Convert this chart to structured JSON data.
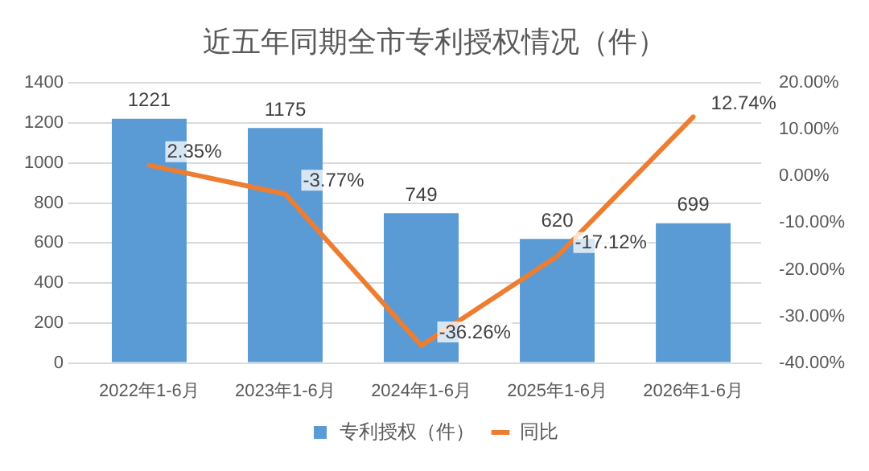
{
  "chart_data": {
    "type": "bar",
    "title": "近五年同期全市专利授权情况（件）",
    "categories": [
      "2022年1-6月",
      "2023年1-6月",
      "2024年1-6月",
      "2025年1-6月",
      "2026年1-6月"
    ],
    "series": [
      {
        "name": "专利授权（件）",
        "color": "#5b9bd5",
        "values": [
          1221,
          1175,
          749,
          620,
          699
        ]
      },
      {
        "name": "同比",
        "type": "line",
        "axis": "y2",
        "color": "#ed7d31",
        "values": [
          2.35,
          -3.77,
          -36.26,
          -17.12,
          12.74
        ],
        "value_labels": [
          "2.35%",
          "-3.77%",
          "-36.26%",
          "-17.12%",
          "12.74%"
        ]
      }
    ],
    "ylim": [
      0,
      1400
    ],
    "yticks": [
      0,
      200,
      400,
      600,
      800,
      1000,
      1200,
      1400
    ],
    "y2lim": [
      -40,
      20
    ],
    "y2ticks": [
      {
        "value": -40,
        "label": "-40.00%"
      },
      {
        "value": -30,
        "label": "-30.00%"
      },
      {
        "value": -20,
        "label": "-20.00%"
      },
      {
        "value": -10,
        "label": "-10.00%"
      },
      {
        "value": 0,
        "label": "0.00%"
      },
      {
        "value": 10,
        "label": "10.00%"
      },
      {
        "value": 20,
        "label": "20.00%"
      }
    ],
    "grid": "y",
    "legend": "bottom",
    "marker": "none",
    "line_style": "solid",
    "data_labels": true
  }
}
